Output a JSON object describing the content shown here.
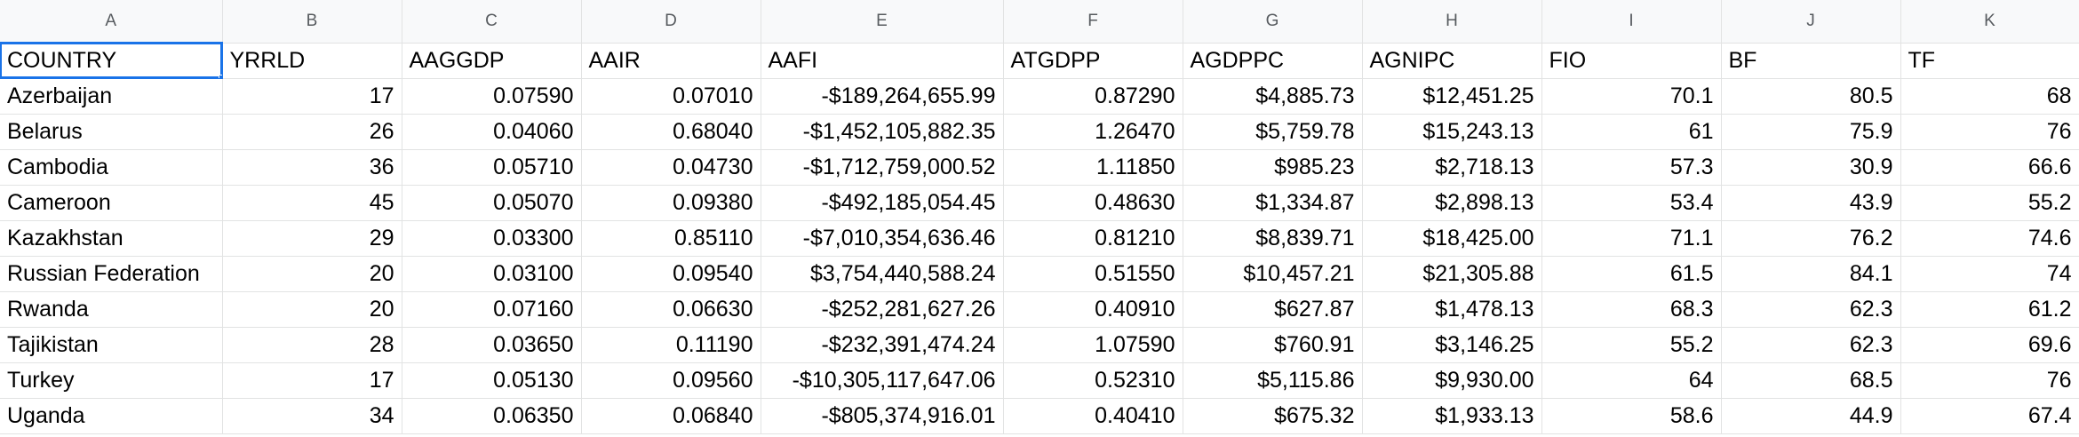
{
  "columns": [
    "A",
    "B",
    "C",
    "D",
    "E",
    "F",
    "G",
    "H",
    "I",
    "J",
    "K"
  ],
  "header_row": [
    "COUNTRY",
    "YRRLD",
    "AAGGDP",
    "AAIR",
    "AAFI",
    "ATGDPP",
    "AGDPPC",
    "AGNIPC",
    "FIO",
    "BF",
    "TF"
  ],
  "rows": [
    [
      "Azerbaijan",
      "17",
      "0.07590",
      "0.07010",
      "-$189,264,655.99",
      "0.87290",
      "$4,885.73",
      "$12,451.25",
      "70.1",
      "80.5",
      "68"
    ],
    [
      "Belarus",
      "26",
      "0.04060",
      "0.68040",
      "-$1,452,105,882.35",
      "1.26470",
      "$5,759.78",
      "$15,243.13",
      "61",
      "75.9",
      "76"
    ],
    [
      "Cambodia",
      "36",
      "0.05710",
      "0.04730",
      "-$1,712,759,000.52",
      "1.11850",
      "$985.23",
      "$2,718.13",
      "57.3",
      "30.9",
      "66.6"
    ],
    [
      "Cameroon",
      "45",
      "0.05070",
      "0.09380",
      "-$492,185,054.45",
      "0.48630",
      "$1,334.87",
      "$2,898.13",
      "53.4",
      "43.9",
      "55.2"
    ],
    [
      "Kazakhstan",
      "29",
      "0.03300",
      "0.85110",
      "-$7,010,354,636.46",
      "0.81210",
      "$8,839.71",
      "$18,425.00",
      "71.1",
      "76.2",
      "74.6"
    ],
    [
      "Russian Federation",
      "20",
      "0.03100",
      "0.09540",
      "$3,754,440,588.24",
      "0.51550",
      "$10,457.21",
      "$21,305.88",
      "61.5",
      "84.1",
      "74"
    ],
    [
      "Rwanda",
      "20",
      "0.07160",
      "0.06630",
      "-$252,281,627.26",
      "0.40910",
      "$627.87",
      "$1,478.13",
      "68.3",
      "62.3",
      "61.2"
    ],
    [
      "Tajikistan",
      "28",
      "0.03650",
      "0.11190",
      "-$232,391,474.24",
      "1.07590",
      "$760.91",
      "$3,146.25",
      "55.2",
      "62.3",
      "69.6"
    ],
    [
      "Turkey",
      "17",
      "0.05130",
      "0.09560",
      "-$10,305,117,647.06",
      "0.52310",
      "$5,115.86",
      "$9,930.00",
      "64",
      "68.5",
      "76"
    ],
    [
      "Uganda",
      "34",
      "0.06350",
      "0.06840",
      "-$805,374,916.01",
      "0.40410",
      "$675.32",
      "$1,933.13",
      "58.6",
      "44.9",
      "67.4"
    ]
  ]
}
